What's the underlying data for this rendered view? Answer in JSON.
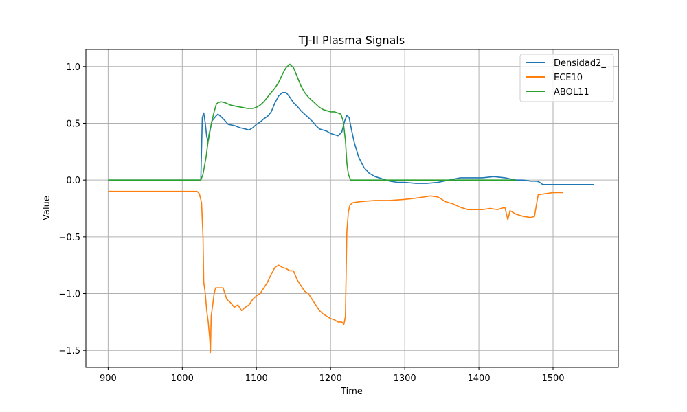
{
  "chart_data": {
    "type": "line",
    "title": "TJ-II Plasma Signals",
    "xlabel": "Time",
    "ylabel": "Value",
    "xlim": [
      870,
      1588
    ],
    "ylim": [
      -1.65,
      1.15
    ],
    "x_ticks": [
      900,
      1000,
      1100,
      1200,
      1300,
      1400,
      1500
    ],
    "x_tick_labels": [
      "900",
      "1000",
      "1100",
      "1200",
      "1300",
      "1400",
      "1500"
    ],
    "y_ticks": [
      1.0,
      0.5,
      0.0,
      -0.5,
      -1.0,
      -1.5
    ],
    "y_tick_labels": [
      "1.0",
      "0.5",
      "0.0",
      "−0.5",
      "−1.0",
      "−1.5"
    ],
    "grid": true,
    "legend_position": "top-right",
    "series": [
      {
        "name": "Densidad2_",
        "color": "#1f77b4",
        "points": [
          [
            900,
            0.0
          ],
          [
            1000,
            0.0
          ],
          [
            1025,
            0.0
          ],
          [
            1027,
            0.55
          ],
          [
            1029,
            0.59
          ],
          [
            1031,
            0.5
          ],
          [
            1033,
            0.38
          ],
          [
            1035,
            0.34
          ],
          [
            1037,
            0.42
          ],
          [
            1040,
            0.52
          ],
          [
            1045,
            0.56
          ],
          [
            1048,
            0.58
          ],
          [
            1052,
            0.56
          ],
          [
            1058,
            0.52
          ],
          [
            1062,
            0.49
          ],
          [
            1070,
            0.48
          ],
          [
            1078,
            0.46
          ],
          [
            1085,
            0.45
          ],
          [
            1090,
            0.44
          ],
          [
            1095,
            0.46
          ],
          [
            1100,
            0.49
          ],
          [
            1105,
            0.51
          ],
          [
            1110,
            0.54
          ],
          [
            1115,
            0.56
          ],
          [
            1120,
            0.6
          ],
          [
            1125,
            0.68
          ],
          [
            1130,
            0.74
          ],
          [
            1135,
            0.77
          ],
          [
            1140,
            0.77
          ],
          [
            1145,
            0.73
          ],
          [
            1150,
            0.68
          ],
          [
            1155,
            0.65
          ],
          [
            1160,
            0.61
          ],
          [
            1165,
            0.58
          ],
          [
            1170,
            0.55
          ],
          [
            1175,
            0.52
          ],
          [
            1180,
            0.48
          ],
          [
            1185,
            0.45
          ],
          [
            1190,
            0.44
          ],
          [
            1195,
            0.43
          ],
          [
            1200,
            0.41
          ],
          [
            1205,
            0.4
          ],
          [
            1210,
            0.39
          ],
          [
            1215,
            0.42
          ],
          [
            1219,
            0.52
          ],
          [
            1222,
            0.57
          ],
          [
            1225,
            0.55
          ],
          [
            1228,
            0.45
          ],
          [
            1232,
            0.33
          ],
          [
            1238,
            0.2
          ],
          [
            1245,
            0.11
          ],
          [
            1252,
            0.06
          ],
          [
            1260,
            0.03
          ],
          [
            1270,
            0.01
          ],
          [
            1280,
            -0.01
          ],
          [
            1290,
            -0.02
          ],
          [
            1300,
            -0.02
          ],
          [
            1315,
            -0.03
          ],
          [
            1330,
            -0.03
          ],
          [
            1345,
            -0.02
          ],
          [
            1360,
            0.0
          ],
          [
            1375,
            0.02
          ],
          [
            1390,
            0.02
          ],
          [
            1405,
            0.02
          ],
          [
            1420,
            0.03
          ],
          [
            1435,
            0.02
          ],
          [
            1450,
            0.0
          ],
          [
            1460,
            0.0
          ],
          [
            1470,
            -0.01
          ],
          [
            1478,
            -0.01
          ],
          [
            1482,
            -0.02
          ],
          [
            1486,
            -0.04
          ],
          [
            1495,
            -0.04
          ],
          [
            1510,
            -0.04
          ],
          [
            1530,
            -0.04
          ],
          [
            1555,
            -0.04
          ]
        ]
      },
      {
        "name": "ECE10",
        "color": "#ff7f0e",
        "points": [
          [
            900,
            -0.1
          ],
          [
            950,
            -0.1
          ],
          [
            1000,
            -0.1
          ],
          [
            1020,
            -0.1
          ],
          [
            1023,
            -0.12
          ],
          [
            1026,
            -0.2
          ],
          [
            1028,
            -0.5
          ],
          [
            1029,
            -0.9
          ],
          [
            1031,
            -1.0
          ],
          [
            1033,
            -1.15
          ],
          [
            1035,
            -1.25
          ],
          [
            1037,
            -1.4
          ],
          [
            1038,
            -1.52
          ],
          [
            1039,
            -1.2
          ],
          [
            1041,
            -1.1
          ],
          [
            1043,
            -1.0
          ],
          [
            1045,
            -0.95
          ],
          [
            1050,
            -0.95
          ],
          [
            1055,
            -0.95
          ],
          [
            1060,
            -1.05
          ],
          [
            1065,
            -1.08
          ],
          [
            1070,
            -1.12
          ],
          [
            1075,
            -1.1
          ],
          [
            1080,
            -1.15
          ],
          [
            1085,
            -1.12
          ],
          [
            1090,
            -1.1
          ],
          [
            1095,
            -1.05
          ],
          [
            1100,
            -1.02
          ],
          [
            1105,
            -1.0
          ],
          [
            1110,
            -0.95
          ],
          [
            1115,
            -0.9
          ],
          [
            1120,
            -0.83
          ],
          [
            1125,
            -0.77
          ],
          [
            1130,
            -0.75
          ],
          [
            1135,
            -0.77
          ],
          [
            1140,
            -0.78
          ],
          [
            1145,
            -0.8
          ],
          [
            1150,
            -0.8
          ],
          [
            1155,
            -0.88
          ],
          [
            1160,
            -0.93
          ],
          [
            1165,
            -0.98
          ],
          [
            1170,
            -1.0
          ],
          [
            1175,
            -1.05
          ],
          [
            1180,
            -1.1
          ],
          [
            1185,
            -1.15
          ],
          [
            1190,
            -1.18
          ],
          [
            1195,
            -1.2
          ],
          [
            1200,
            -1.22
          ],
          [
            1205,
            -1.23
          ],
          [
            1210,
            -1.25
          ],
          [
            1215,
            -1.25
          ],
          [
            1218,
            -1.27
          ],
          [
            1220,
            -1.2
          ],
          [
            1221,
            -0.8
          ],
          [
            1222,
            -0.45
          ],
          [
            1224,
            -0.28
          ],
          [
            1226,
            -0.22
          ],
          [
            1230,
            -0.2
          ],
          [
            1240,
            -0.19
          ],
          [
            1260,
            -0.18
          ],
          [
            1280,
            -0.18
          ],
          [
            1300,
            -0.17
          ],
          [
            1315,
            -0.16
          ],
          [
            1325,
            -0.15
          ],
          [
            1335,
            -0.14
          ],
          [
            1345,
            -0.15
          ],
          [
            1355,
            -0.19
          ],
          [
            1365,
            -0.21
          ],
          [
            1375,
            -0.24
          ],
          [
            1385,
            -0.26
          ],
          [
            1395,
            -0.26
          ],
          [
            1405,
            -0.26
          ],
          [
            1415,
            -0.25
          ],
          [
            1425,
            -0.26
          ],
          [
            1435,
            -0.24
          ],
          [
            1439,
            -0.35
          ],
          [
            1442,
            -0.27
          ],
          [
            1450,
            -0.3
          ],
          [
            1460,
            -0.32
          ],
          [
            1470,
            -0.33
          ],
          [
            1475,
            -0.32
          ],
          [
            1478,
            -0.2
          ],
          [
            1480,
            -0.13
          ],
          [
            1490,
            -0.12
          ],
          [
            1500,
            -0.11
          ],
          [
            1513,
            -0.11
          ]
        ]
      },
      {
        "name": "ABOL11",
        "color": "#2ca02c",
        "points": [
          [
            900,
            0.0
          ],
          [
            950,
            0.0
          ],
          [
            1000,
            0.0
          ],
          [
            1025,
            0.0
          ],
          [
            1028,
            0.05
          ],
          [
            1032,
            0.2
          ],
          [
            1036,
            0.4
          ],
          [
            1040,
            0.52
          ],
          [
            1043,
            0.6
          ],
          [
            1046,
            0.67
          ],
          [
            1048,
            0.68
          ],
          [
            1052,
            0.69
          ],
          [
            1058,
            0.68
          ],
          [
            1065,
            0.66
          ],
          [
            1072,
            0.65
          ],
          [
            1080,
            0.64
          ],
          [
            1088,
            0.63
          ],
          [
            1095,
            0.63
          ],
          [
            1100,
            0.64
          ],
          [
            1105,
            0.66
          ],
          [
            1110,
            0.69
          ],
          [
            1115,
            0.73
          ],
          [
            1120,
            0.77
          ],
          [
            1125,
            0.81
          ],
          [
            1130,
            0.86
          ],
          [
            1135,
            0.93
          ],
          [
            1140,
            0.99
          ],
          [
            1145,
            1.02
          ],
          [
            1150,
            0.99
          ],
          [
            1155,
            0.91
          ],
          [
            1160,
            0.83
          ],
          [
            1165,
            0.77
          ],
          [
            1170,
            0.73
          ],
          [
            1175,
            0.7
          ],
          [
            1180,
            0.67
          ],
          [
            1185,
            0.64
          ],
          [
            1190,
            0.62
          ],
          [
            1195,
            0.61
          ],
          [
            1200,
            0.6
          ],
          [
            1205,
            0.6
          ],
          [
            1210,
            0.59
          ],
          [
            1214,
            0.58
          ],
          [
            1217,
            0.52
          ],
          [
            1220,
            0.35
          ],
          [
            1222,
            0.15
          ],
          [
            1224,
            0.05
          ],
          [
            1227,
            0.0
          ],
          [
            1240,
            0.0
          ],
          [
            1280,
            0.0
          ],
          [
            1320,
            0.0
          ],
          [
            1360,
            0.0
          ],
          [
            1400,
            0.0
          ],
          [
            1450,
            0.0
          ]
        ]
      }
    ]
  }
}
